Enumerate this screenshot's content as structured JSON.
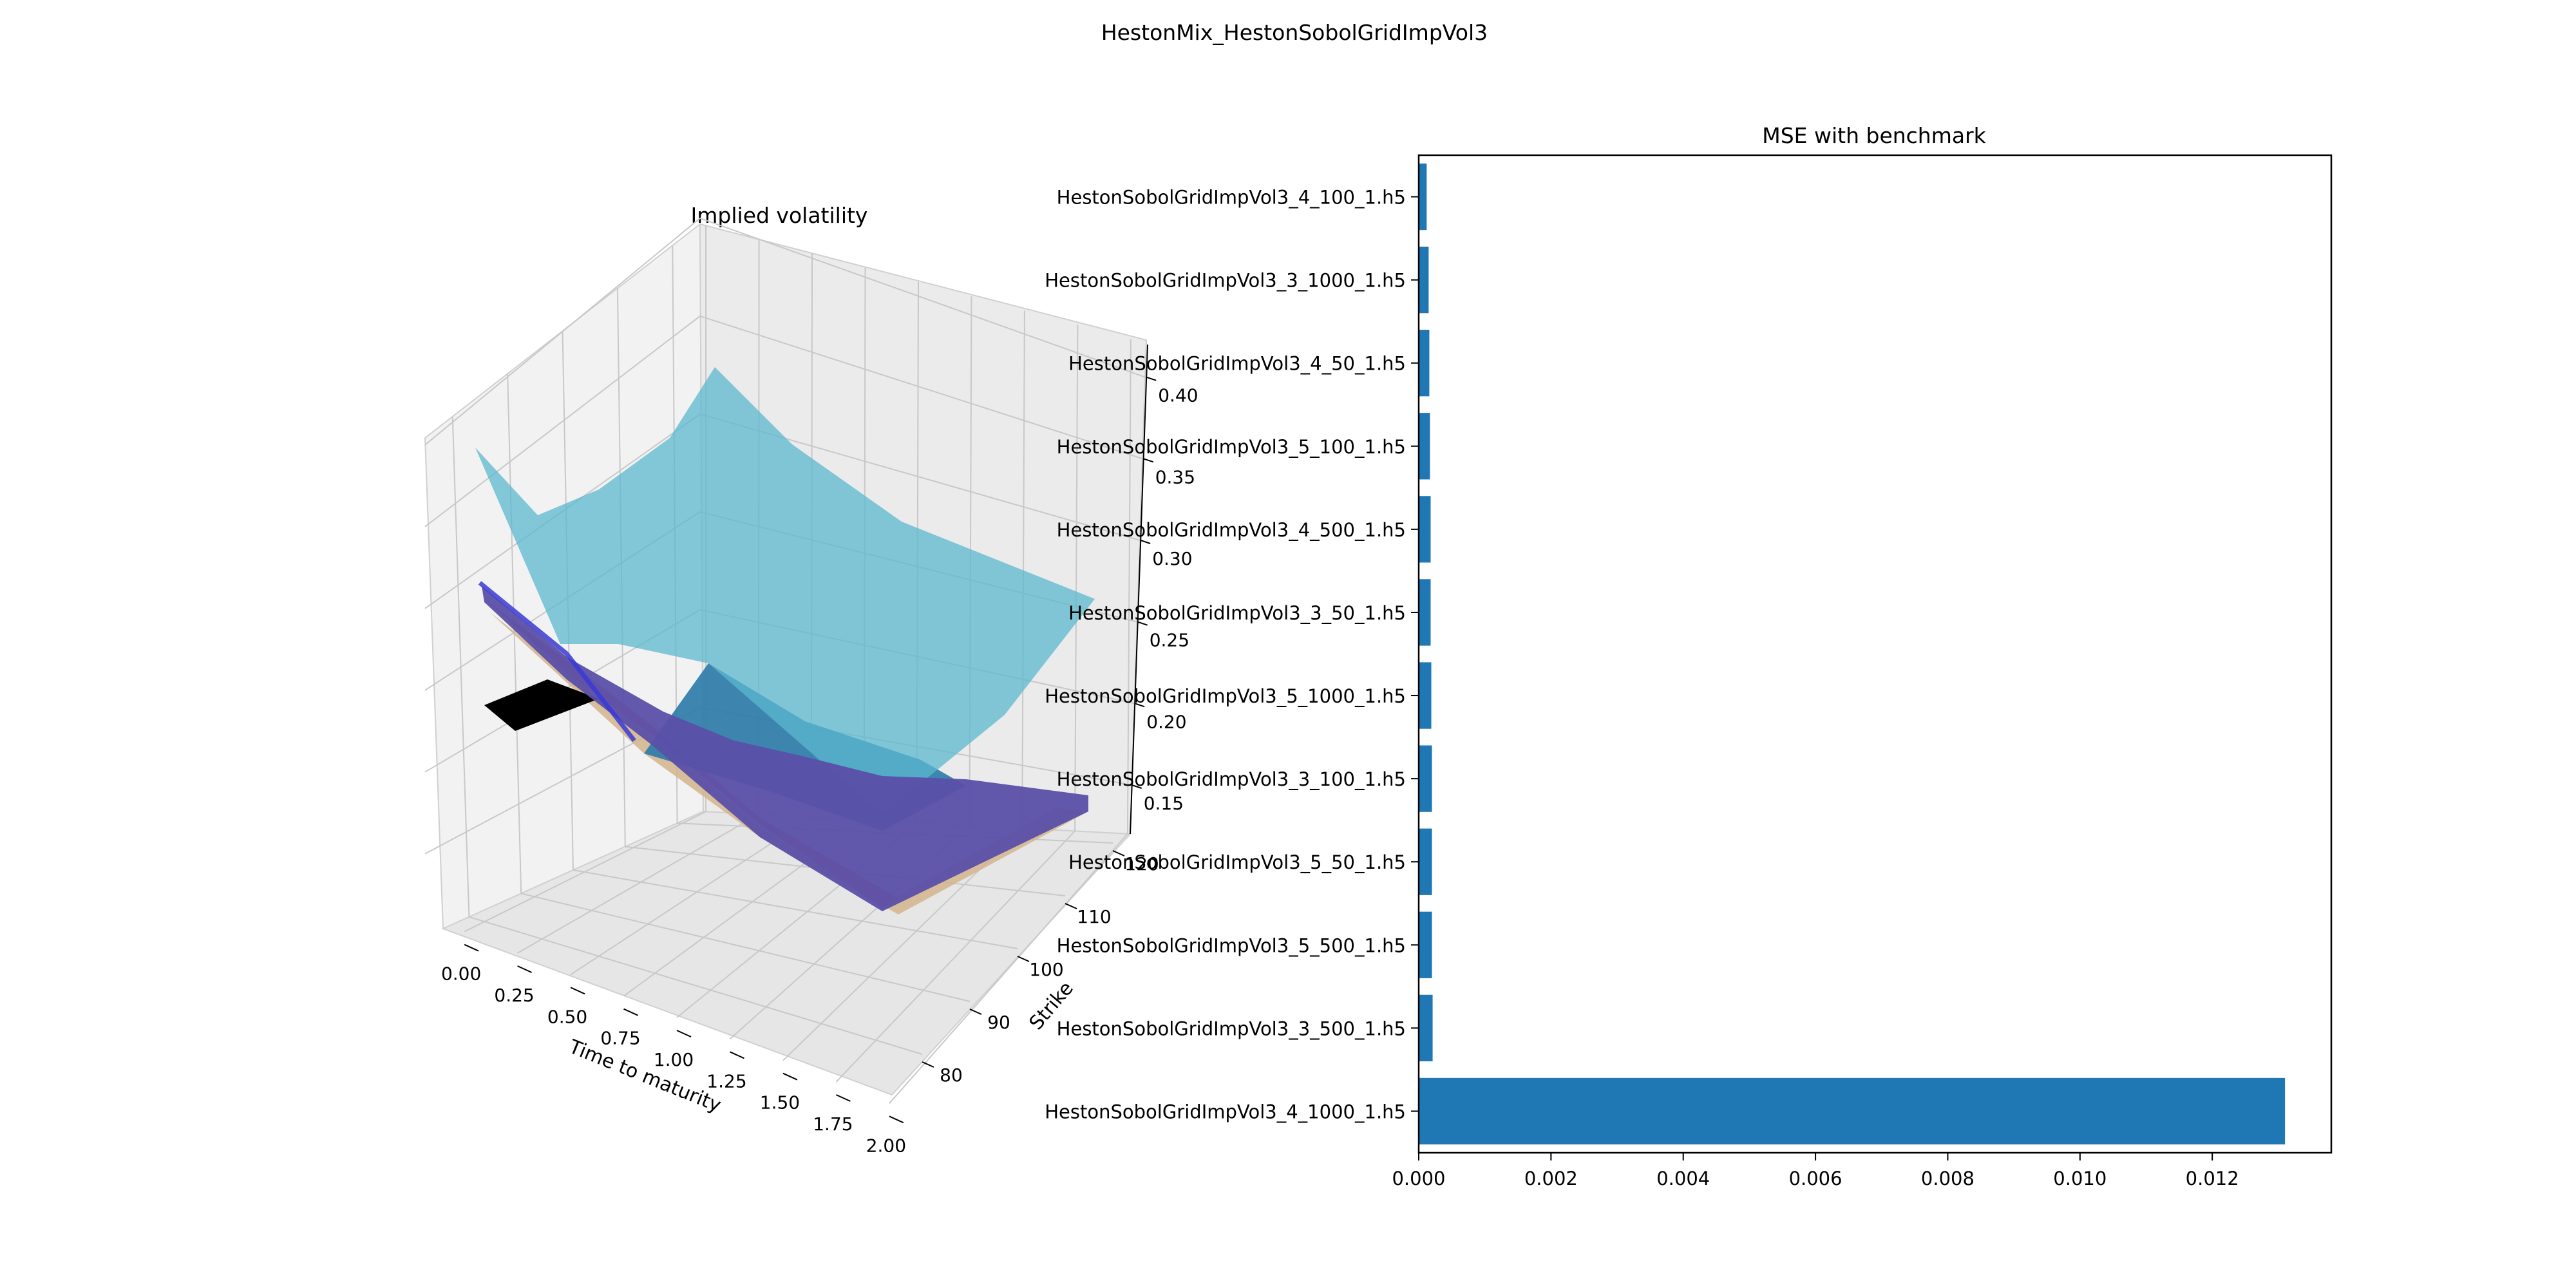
{
  "suptitle": "HestonMix_HestonSobolGridImpVol3",
  "colors": {
    "bar": "#1f77b4",
    "pane": "#f2f2f2",
    "grid": "#c8c8c8",
    "surface_main": "#5bb8cf",
    "surface_black": "#000000",
    "surface_tan": "#d2b48c",
    "surface_salmon": "#e8806a",
    "surface_blue": "#3a3ad6",
    "surface_purple": "#5a4fa8",
    "surface_teal": "#2a7aa8"
  },
  "chart_data": [
    {
      "type": "surface3d",
      "title": "Implied volatility",
      "xlabel": "Time to maturity",
      "ylabel": "Strike",
      "zlabel": "",
      "x_ticks": [
        "0.00",
        "0.25",
        "0.50",
        "0.75",
        "1.00",
        "1.25",
        "1.50",
        "1.75",
        "2.00"
      ],
      "y_ticks": [
        "80",
        "90",
        "100",
        "110",
        "120"
      ],
      "z_ticks": [
        "0.15",
        "0.20",
        "0.25",
        "0.30",
        "0.35",
        "0.40"
      ],
      "xlim": [
        0,
        2
      ],
      "ylim": [
        75,
        125
      ],
      "zlim": [
        0.12,
        0.42
      ],
      "grid": true
    },
    {
      "type": "bar",
      "orientation": "horizontal",
      "title": "MSE with benchmark",
      "categories": [
        "HestonSobolGridImpVol3_4_100_1.h5",
        "HestonSobolGridImpVol3_3_1000_1.h5",
        "HestonSobolGridImpVol3_4_50_1.h5",
        "HestonSobolGridImpVol3_5_100_1.h5",
        "HestonSobolGridImpVol3_4_500_1.h5",
        "HestonSobolGridImpVol3_3_50_1.h5",
        "HestonSobolGridImpVol3_5_1000_1.h5",
        "HestonSobolGridImpVol3_3_100_1.h5",
        "HestonSobolGridImpVol3_5_50_1.h5",
        "HestonSobolGridImpVol3_5_500_1.h5",
        "HestonSobolGridImpVol3_3_500_1.h5",
        "HestonSobolGridImpVol3_4_1000_1.h5"
      ],
      "values": [
        0.00012,
        0.00015,
        0.00016,
        0.00017,
        0.00018,
        0.00018,
        0.00019,
        0.0002,
        0.0002,
        0.0002,
        0.00021,
        0.0131
      ],
      "x_ticks": [
        "0.000",
        "0.002",
        "0.004",
        "0.006",
        "0.008",
        "0.010",
        "0.012"
      ],
      "x_tick_values": [
        0,
        0.002,
        0.004,
        0.006,
        0.008,
        0.01,
        0.012
      ],
      "xlim": [
        0,
        0.0138
      ],
      "xlabel": "",
      "ylabel": ""
    }
  ]
}
